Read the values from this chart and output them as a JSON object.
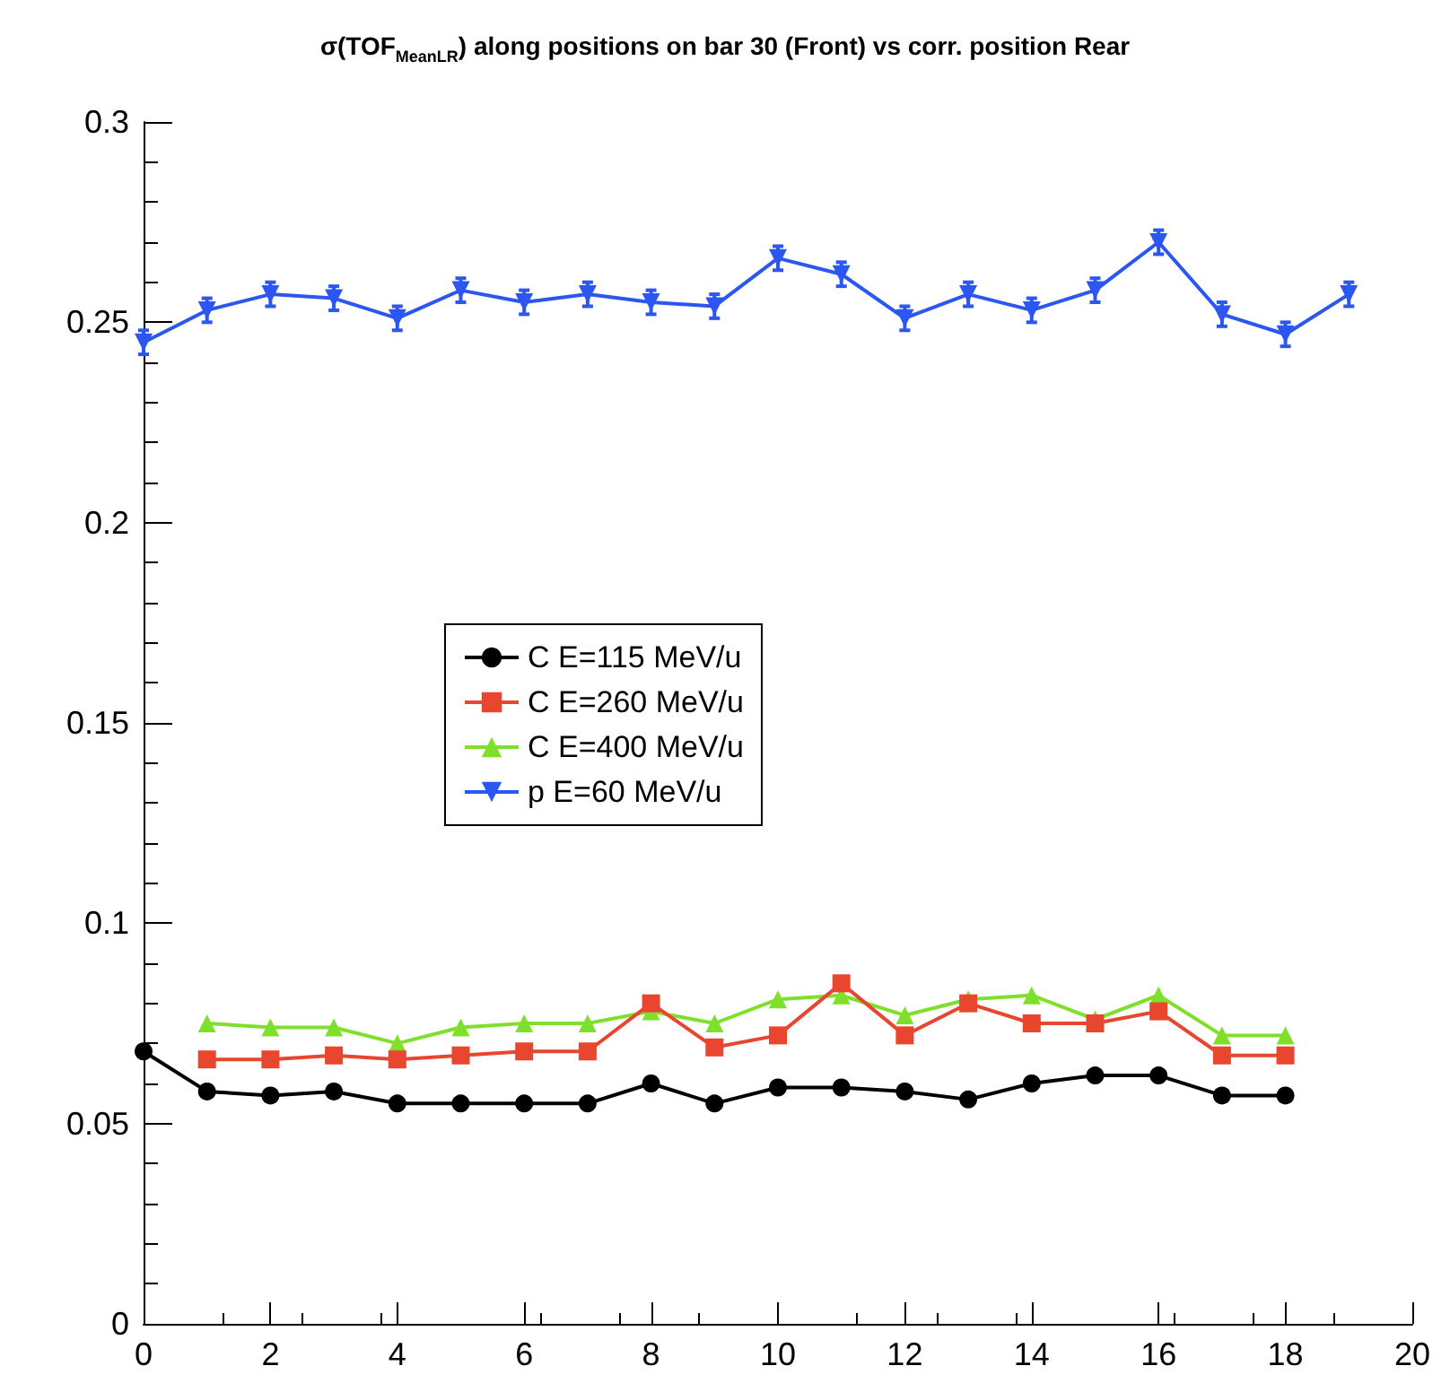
{
  "chart_data": {
    "type": "line",
    "title": "σ(TOF$_{MeanLR}$) along positions on bar 30 (Front) vs corr. position Rear",
    "x": [
      0,
      1,
      2,
      3,
      4,
      5,
      6,
      7,
      8,
      9,
      10,
      11,
      12,
      13,
      14,
      15,
      16,
      17,
      18,
      19
    ],
    "xlim": [
      0,
      20
    ],
    "xticks": [
      0,
      2,
      4,
      6,
      8,
      10,
      12,
      14,
      16,
      18,
      20
    ],
    "ylim": [
      0,
      0.3
    ],
    "yticks": [
      0,
      0.05,
      0.1,
      0.15,
      0.2,
      0.25,
      0.3
    ],
    "grid": false,
    "legend": "left",
    "line_style": "solid",
    "series": [
      {
        "name": "C E=115 MeV/u",
        "color": "#000000",
        "marker": "circle",
        "values": [
          0.068,
          0.058,
          0.057,
          0.058,
          0.055,
          0.055,
          0.055,
          0.055,
          0.06,
          0.055,
          0.059,
          0.059,
          0.058,
          0.056,
          0.06,
          0.062,
          0.062,
          0.057,
          0.057,
          null
        ]
      },
      {
        "name": "C E=260 MeV/u",
        "color": "#e8462e",
        "marker": "square",
        "values": [
          null,
          0.066,
          0.066,
          0.067,
          0.066,
          0.067,
          0.068,
          0.068,
          0.08,
          0.069,
          0.072,
          0.085,
          0.072,
          0.08,
          0.075,
          0.075,
          0.078,
          0.067,
          0.067,
          null
        ]
      },
      {
        "name": "C E=400 MeV/u",
        "color": "#7ee02a",
        "marker": "triangle",
        "values": [
          null,
          0.075,
          0.074,
          0.074,
          0.07,
          0.074,
          0.075,
          0.075,
          0.078,
          0.075,
          0.081,
          0.082,
          0.077,
          0.081,
          0.082,
          0.076,
          0.082,
          0.072,
          0.072,
          null
        ]
      },
      {
        "name": "p E=60 MeV/u",
        "color": "#2b56f0",
        "marker": "triangle-down",
        "values": [
          0.245,
          0.253,
          0.257,
          0.256,
          0.251,
          0.258,
          0.255,
          0.257,
          0.255,
          0.254,
          0.266,
          0.262,
          0.251,
          0.257,
          0.253,
          0.258,
          0.27,
          0.252,
          0.247,
          0.257
        ],
        "errors": [
          0.003,
          0.003,
          0.003,
          0.003,
          0.003,
          0.003,
          0.003,
          0.003,
          0.003,
          0.003,
          0.003,
          0.003,
          0.003,
          0.003,
          0.003,
          0.003,
          0.003,
          0.003,
          0.003,
          0.003
        ]
      }
    ]
  }
}
